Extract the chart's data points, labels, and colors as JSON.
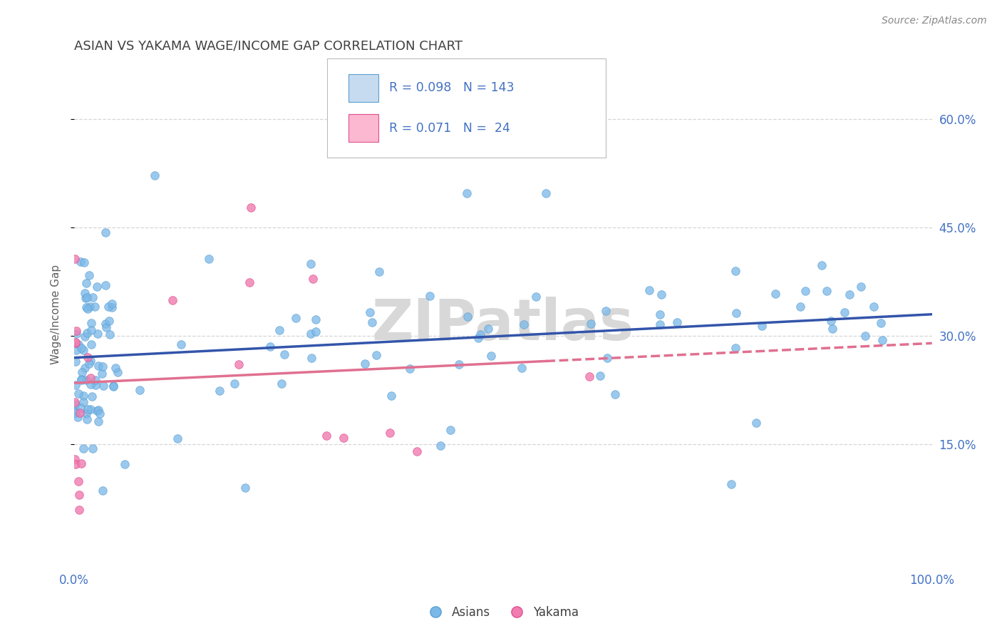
{
  "title": "ASIAN VS YAKAMA WAGE/INCOME GAP CORRELATION CHART",
  "source": "Source: ZipAtlas.com",
  "ylabel": "Wage/Income Gap",
  "xlim": [
    0,
    1
  ],
  "ylim": [
    -0.02,
    0.68
  ],
  "ytick_positions": [
    0.15,
    0.3,
    0.45,
    0.6
  ],
  "ytick_labels": [
    "15.0%",
    "30.0%",
    "45.0%",
    "60.0%"
  ],
  "asian_color": "#7ab8e8",
  "asian_color_light": "#c6dbef",
  "asian_edge": "#5a9fd4",
  "yakama_color": "#f07cb0",
  "yakama_color_light": "#fbb8d0",
  "yakama_edge": "#e05090",
  "trend_blue": "#3355aa",
  "trend_pink": "#e07090",
  "R_asian": 0.098,
  "N_asian": 143,
  "R_yakama": 0.071,
  "N_yakama": 24,
  "legend_label_asian": "Asians",
  "legend_label_yakama": "Yakama",
  "background_color": "#ffffff",
  "grid_color": "#cccccc",
  "watermark_text": "ZIPatlas",
  "watermark_color": "#d8d8d8",
  "title_color": "#404040",
  "title_fontsize": 13,
  "axis_label_color": "#606060",
  "tick_label_color": "#4472c4",
  "legend_text_color": "#4472c4",
  "asian_trend_intercept": 0.27,
  "asian_trend_slope": 0.06,
  "yakama_trend_intercept": 0.235,
  "yakama_trend_slope": 0.055,
  "yakama_trend_solid_end": 0.55
}
